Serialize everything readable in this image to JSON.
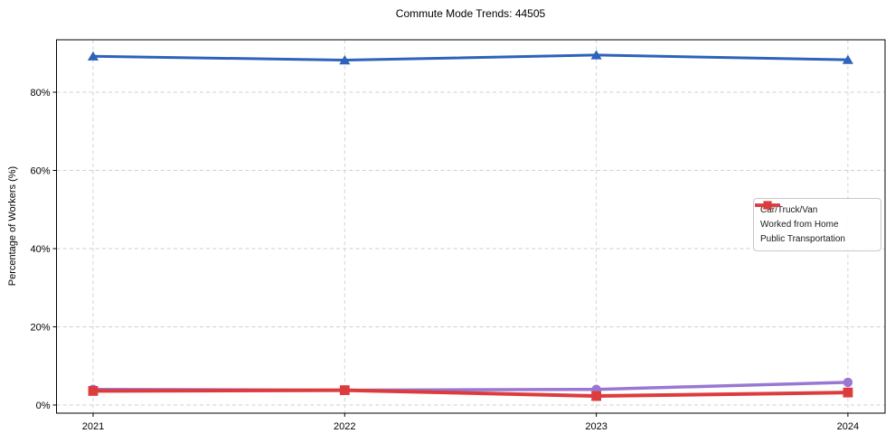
{
  "chart": {
    "title": "Commute Mode Trends: 44505",
    "ylabel": "Percentage of Workers (%)",
    "xlabel": ""
  },
  "chart_data": {
    "type": "line",
    "x": [
      "2021",
      "2022",
      "2023",
      "2024"
    ],
    "series": [
      {
        "name": "Car/Truck/Van",
        "values": [
          89.2,
          88.2,
          89.5,
          88.3
        ],
        "color": "#2e62bb",
        "marker": "triangle"
      },
      {
        "name": "Worked from Home",
        "values": [
          4.0,
          3.8,
          4.0,
          5.8
        ],
        "color": "#9878d2",
        "marker": "circle"
      },
      {
        "name": "Public Transportation",
        "values": [
          3.6,
          3.8,
          2.3,
          3.2
        ],
        "color": "#dd3c3c",
        "marker": "square"
      }
    ],
    "yticks": [
      0,
      20,
      40,
      60,
      80
    ],
    "ytick_labels": [
      "0%",
      "20%",
      "40%",
      "60%",
      "80%"
    ],
    "xtick_labels": [
      "2021",
      "2022",
      "2023",
      "2024"
    ],
    "ylim": [
      0,
      93
    ],
    "grid": true,
    "grid_color": "#cfcfcf",
    "spine_color": "#000000",
    "legend_position": "center-right"
  }
}
